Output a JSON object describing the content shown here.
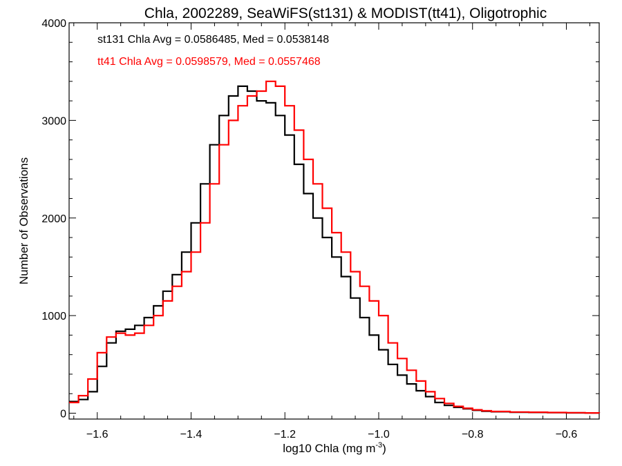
{
  "chart_data": {
    "type": "line",
    "step": true,
    "title": "Chla, 2002289, SeaWiFS(st131) & MODIST(tt41), Oligotrophic",
    "xlabel": "log10 Chla (mg m",
    "xlabel_sup": "-3",
    "xlabel_end": ")",
    "ylabel": "Number of Observations",
    "xlim": [
      -1.66,
      -0.53
    ],
    "ylim": [
      -60,
      4000
    ],
    "xticks": [
      -1.6,
      -1.4,
      -1.2,
      -1.0,
      -0.8,
      -0.6
    ],
    "xtick_labels": [
      "−1.6",
      "−1.4",
      "−1.2",
      "−1.0",
      "−0.8",
      "−0.6"
    ],
    "yticks": [
      0,
      1000,
      2000,
      3000,
      4000
    ],
    "ytick_labels": [
      "0",
      "1000",
      "2000",
      "3000",
      "4000"
    ],
    "grid": false,
    "annotations": [
      {
        "text": "st131 Chla Avg = 0.0586485, Med = 0.0538148",
        "color": "#000000"
      },
      {
        "text": "tt41 Chla Avg = 0.0598579, Med = 0.0557468",
        "color": "#ff0000"
      }
    ],
    "series": [
      {
        "color": "#000000",
        "x": [
          -1.66,
          -1.64,
          -1.62,
          -1.6,
          -1.58,
          -1.56,
          -1.54,
          -1.52,
          -1.5,
          -1.48,
          -1.46,
          -1.44,
          -1.42,
          -1.4,
          -1.38,
          -1.36,
          -1.34,
          -1.32,
          -1.3,
          -1.28,
          -1.26,
          -1.24,
          -1.22,
          -1.2,
          -1.18,
          -1.16,
          -1.14,
          -1.12,
          -1.1,
          -1.08,
          -1.06,
          -1.04,
          -1.02,
          -1.0,
          -0.98,
          -0.96,
          -0.94,
          -0.92,
          -0.9,
          -0.88,
          -0.86,
          -0.84,
          -0.82,
          -0.8,
          -0.78,
          -0.76,
          -0.72,
          -0.68,
          -0.64,
          -0.6,
          -0.56,
          -0.53
        ],
        "y": [
          120,
          140,
          220,
          480,
          720,
          840,
          860,
          900,
          980,
          1100,
          1250,
          1420,
          1650,
          1950,
          2350,
          2750,
          3050,
          3250,
          3350,
          3300,
          3200,
          3180,
          3050,
          2850,
          2550,
          2250,
          2000,
          1800,
          1600,
          1400,
          1180,
          980,
          800,
          650,
          500,
          390,
          300,
          230,
          170,
          110,
          80,
          60,
          45,
          30,
          20,
          15,
          10,
          8,
          6,
          4,
          3,
          2
        ]
      },
      {
        "color": "#ff0000",
        "x": [
          -1.66,
          -1.64,
          -1.62,
          -1.6,
          -1.58,
          -1.56,
          -1.54,
          -1.52,
          -1.5,
          -1.48,
          -1.46,
          -1.44,
          -1.42,
          -1.4,
          -1.38,
          -1.36,
          -1.34,
          -1.32,
          -1.3,
          -1.28,
          -1.26,
          -1.24,
          -1.22,
          -1.2,
          -1.18,
          -1.16,
          -1.14,
          -1.12,
          -1.1,
          -1.08,
          -1.06,
          -1.04,
          -1.02,
          -1.0,
          -0.98,
          -0.96,
          -0.94,
          -0.92,
          -0.9,
          -0.88,
          -0.86,
          -0.84,
          -0.82,
          -0.8,
          -0.78,
          -0.76,
          -0.72,
          -0.68,
          -0.64,
          -0.6,
          -0.56,
          -0.53
        ],
        "y": [
          110,
          180,
          350,
          620,
          780,
          820,
          800,
          820,
          900,
          1000,
          1150,
          1300,
          1450,
          1650,
          1950,
          2350,
          2750,
          3000,
          3150,
          3250,
          3300,
          3400,
          3350,
          3150,
          2900,
          2600,
          2350,
          2100,
          1850,
          1650,
          1450,
          1300,
          1150,
          1000,
          720,
          560,
          440,
          330,
          220,
          150,
          100,
          70,
          50,
          35,
          25,
          18,
          12,
          10,
          7,
          5,
          3,
          2
        ]
      }
    ]
  }
}
